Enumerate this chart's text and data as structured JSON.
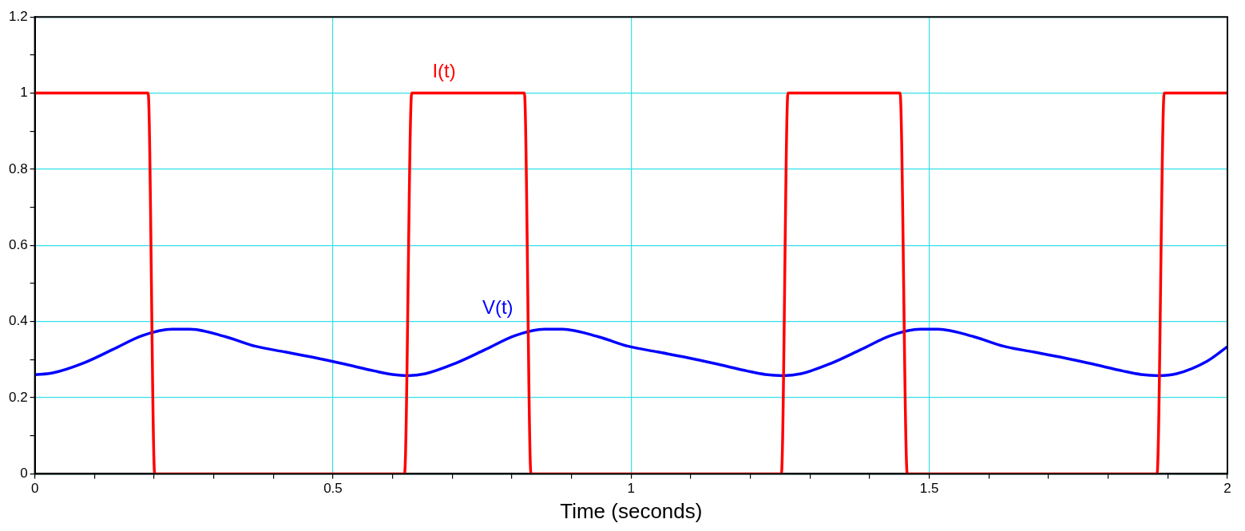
{
  "chart_data": {
    "type": "line",
    "xlabel": "Time (seconds)",
    "xlim": [
      0,
      2
    ],
    "ylim": [
      0,
      1.2
    ],
    "xticks": [
      0,
      {
        "value": 0.1,
        "label": null
      },
      {
        "value": 0.2,
        "label": null
      },
      {
        "value": 0.3,
        "label": null
      },
      {
        "value": 0.4,
        "label": null
      },
      0.5,
      {
        "value": 0.6,
        "label": null
      },
      {
        "value": 0.7,
        "label": null
      },
      {
        "value": 0.8,
        "label": null
      },
      {
        "value": 0.9,
        "label": null
      },
      1,
      {
        "value": 1.1,
        "label": null
      },
      {
        "value": 1.2,
        "label": null
      },
      {
        "value": 1.3,
        "label": null
      },
      {
        "value": 1.4,
        "label": null
      },
      1.5,
      {
        "value": 1.6,
        "label": null
      },
      {
        "value": 1.7,
        "label": null
      },
      {
        "value": 1.8,
        "label": null
      },
      {
        "value": 1.9,
        "label": null
      },
      2
    ],
    "yticks": [
      0,
      {
        "value": 0.1,
        "label": null
      },
      0.2,
      {
        "value": 0.3,
        "label": null
      },
      0.4,
      {
        "value": 0.5,
        "label": null
      },
      0.6,
      {
        "value": 0.7,
        "label": null
      },
      0.8,
      {
        "value": 0.9,
        "label": null
      },
      1,
      {
        "value": 1.1,
        "label": null
      },
      1.2
    ],
    "grid": true,
    "marker": "none",
    "line_style": "solid",
    "series": [
      {
        "name": "I(t)",
        "color": "#ff0000",
        "x": [
          0,
          0.19,
          0.201,
          0.62,
          0.632,
          0.821,
          0.832,
          1.252,
          1.263,
          1.451,
          1.463,
          1.882,
          1.894,
          2
        ],
        "values": [
          1,
          1,
          0,
          0,
          1,
          1,
          0,
          0,
          1,
          1,
          0,
          0,
          1,
          1
        ]
      },
      {
        "name": "V(t)",
        "color": "#0000ff",
        "x": [
          0,
          0.03,
          0.08,
          0.13,
          0.18,
          0.23,
          0.26,
          0.32,
          0.37,
          0.42,
          0.47,
          0.52,
          0.57,
          0.6,
          0.625,
          0.655,
          0.705,
          0.755,
          0.805,
          0.855,
          0.885,
          0.945,
          0.995,
          1.045,
          1.095,
          1.145,
          1.195,
          1.225,
          1.255,
          1.285,
          1.335,
          1.385,
          1.435,
          1.485,
          1.515,
          1.575,
          1.625,
          1.675,
          1.725,
          1.775,
          1.825,
          1.855,
          1.885,
          1.915,
          1.965,
          2
        ],
        "values": [
          0.26,
          0.265,
          0.29,
          0.326,
          0.363,
          0.38,
          0.38,
          0.36,
          0.335,
          0.32,
          0.305,
          0.288,
          0.27,
          0.261,
          0.258,
          0.263,
          0.29,
          0.326,
          0.363,
          0.38,
          0.38,
          0.36,
          0.335,
          0.32,
          0.305,
          0.288,
          0.27,
          0.261,
          0.258,
          0.263,
          0.29,
          0.326,
          0.363,
          0.38,
          0.38,
          0.36,
          0.335,
          0.32,
          0.305,
          0.288,
          0.27,
          0.261,
          0.258,
          0.263,
          0.295,
          0.334
        ]
      }
    ]
  }
}
